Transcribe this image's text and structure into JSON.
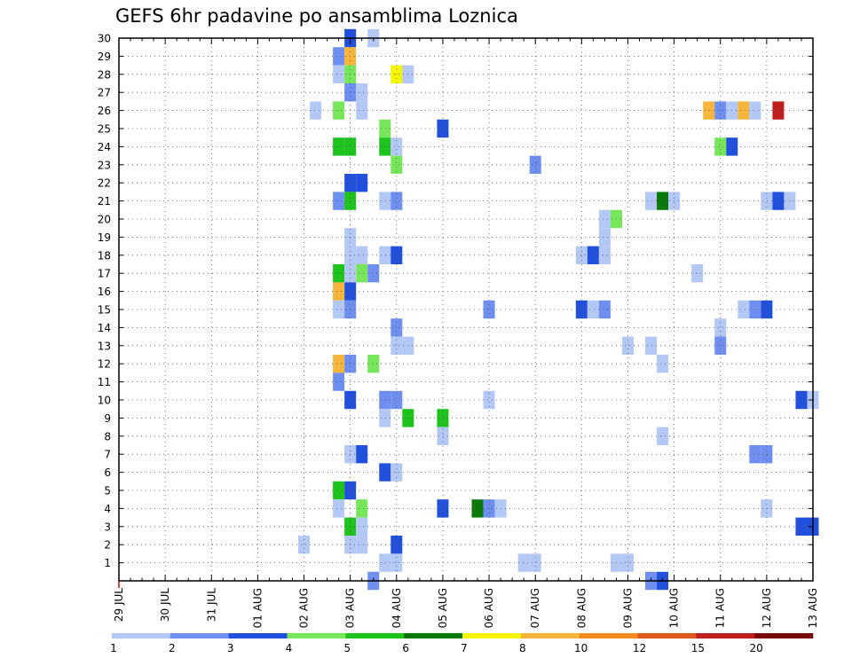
{
  "chart_data": {
    "type": "heatmap",
    "title": "GEFS 6hr padavine po ansamblima Loznica",
    "x_unit": "6-hour step",
    "x_tick_labels": [
      "29 JUL",
      "30 JUL",
      "31 JUL",
      "01 AUG",
      "02 AUG",
      "03 AUG",
      "04 AUG",
      "05 AUG",
      "06 AUG",
      "07 AUG",
      "08 AUG",
      "09 AUG",
      "10 AUG",
      "11 AUG",
      "12 AUG",
      "13 AUG"
    ],
    "xlim": [
      0,
      60
    ],
    "ylim": [
      0,
      30
    ],
    "y_tick_labels": [
      "1",
      "2",
      "3",
      "4",
      "5",
      "6",
      "7",
      "8",
      "9",
      "10",
      "11",
      "12",
      "13",
      "14",
      "15",
      "16",
      "17",
      "18",
      "19",
      "20",
      "21",
      "22",
      "23",
      "24",
      "25",
      "26",
      "27",
      "28",
      "29",
      "30"
    ],
    "grid": true,
    "colorbar": {
      "labels": [
        "1",
        "2",
        "3",
        "4",
        "5",
        "6",
        "7",
        "8",
        "10",
        "12",
        "15",
        "20"
      ],
      "colors": [
        "#b4c8f5",
        "#6e8ff0",
        "#2050dc",
        "#78e65a",
        "#1ec31e",
        "#0a780a",
        "#f5f500",
        "#f5b43c",
        "#f08c1e",
        "#dc5a1e",
        "#be1e1e",
        "#780a0a"
      ]
    },
    "cells": [
      [
        20,
        30,
        2
      ],
      [
        22,
        30,
        0
      ],
      [
        19,
        29,
        1
      ],
      [
        20,
        29,
        7
      ],
      [
        19,
        28,
        0
      ],
      [
        20,
        28,
        3
      ],
      [
        24,
        28,
        6
      ],
      [
        25,
        28,
        0
      ],
      [
        20,
        27,
        1
      ],
      [
        21,
        27,
        0
      ],
      [
        17,
        26,
        0
      ],
      [
        19,
        26,
        3
      ],
      [
        21,
        26,
        0
      ],
      [
        51,
        26,
        7
      ],
      [
        52,
        26,
        1
      ],
      [
        53,
        26,
        0
      ],
      [
        54,
        26,
        7
      ],
      [
        55,
        26,
        0
      ],
      [
        57,
        26,
        10
      ],
      [
        23,
        25,
        3
      ],
      [
        28,
        25,
        2
      ],
      [
        19,
        24,
        4
      ],
      [
        20,
        24,
        4
      ],
      [
        23,
        24,
        4
      ],
      [
        24,
        24,
        0
      ],
      [
        52,
        24,
        3
      ],
      [
        53,
        24,
        2
      ],
      [
        24,
        23,
        3
      ],
      [
        36,
        23,
        1
      ],
      [
        20,
        22,
        2
      ],
      [
        21,
        22,
        2
      ],
      [
        19,
        21,
        1
      ],
      [
        20,
        21,
        4
      ],
      [
        23,
        21,
        0
      ],
      [
        24,
        21,
        1
      ],
      [
        46,
        21,
        0
      ],
      [
        47,
        21,
        5
      ],
      [
        48,
        21,
        0
      ],
      [
        56,
        21,
        0
      ],
      [
        57,
        21,
        2
      ],
      [
        58,
        21,
        0
      ],
      [
        42,
        20,
        0
      ],
      [
        43,
        20,
        3
      ],
      [
        20,
        19,
        0
      ],
      [
        42,
        19,
        0
      ],
      [
        20,
        18,
        0
      ],
      [
        21,
        18,
        0
      ],
      [
        23,
        18,
        0
      ],
      [
        24,
        18,
        2
      ],
      [
        40,
        18,
        0
      ],
      [
        41,
        18,
        2
      ],
      [
        42,
        18,
        0
      ],
      [
        19,
        17,
        4
      ],
      [
        20,
        17,
        0
      ],
      [
        21,
        17,
        3
      ],
      [
        22,
        17,
        1
      ],
      [
        50,
        17,
        0
      ],
      [
        19,
        16,
        7
      ],
      [
        20,
        16,
        2
      ],
      [
        19,
        15,
        0
      ],
      [
        20,
        15,
        1
      ],
      [
        32,
        15,
        1
      ],
      [
        40,
        15,
        2
      ],
      [
        41,
        15,
        0
      ],
      [
        42,
        15,
        1
      ],
      [
        54,
        15,
        0
      ],
      [
        55,
        15,
        1
      ],
      [
        56,
        15,
        2
      ],
      [
        24,
        14,
        1
      ],
      [
        52,
        14,
        0
      ],
      [
        24,
        13,
        0
      ],
      [
        25,
        13,
        0
      ],
      [
        44,
        13,
        0
      ],
      [
        46,
        13,
        0
      ],
      [
        52,
        13,
        1
      ],
      [
        19,
        12,
        7
      ],
      [
        20,
        12,
        1
      ],
      [
        22,
        12,
        3
      ],
      [
        47,
        12,
        0
      ],
      [
        19,
        11,
        1
      ],
      [
        20,
        10,
        2
      ],
      [
        23,
        10,
        1
      ],
      [
        24,
        10,
        1
      ],
      [
        32,
        10,
        0
      ],
      [
        59,
        10,
        2
      ],
      [
        60,
        10,
        0
      ],
      [
        23,
        9,
        0
      ],
      [
        25,
        9,
        4
      ],
      [
        28,
        9,
        4
      ],
      [
        28,
        8,
        0
      ],
      [
        47,
        8,
        0
      ],
      [
        20,
        7,
        0
      ],
      [
        21,
        7,
        2
      ],
      [
        55,
        7,
        1
      ],
      [
        56,
        7,
        1
      ],
      [
        23,
        6,
        2
      ],
      [
        24,
        6,
        0
      ],
      [
        19,
        5,
        4
      ],
      [
        20,
        5,
        2
      ],
      [
        19,
        4,
        0
      ],
      [
        21,
        4,
        3
      ],
      [
        28,
        4,
        2
      ],
      [
        31,
        4,
        5
      ],
      [
        32,
        4,
        1
      ],
      [
        33,
        4,
        0
      ],
      [
        56,
        4,
        0
      ],
      [
        20,
        3,
        4
      ],
      [
        21,
        3,
        0
      ],
      [
        59,
        3,
        2
      ],
      [
        60,
        3,
        2
      ],
      [
        16,
        2,
        0
      ],
      [
        20,
        2,
        0
      ],
      [
        21,
        2,
        0
      ],
      [
        24,
        2,
        2
      ],
      [
        23,
        1,
        0
      ],
      [
        24,
        1,
        0
      ],
      [
        35,
        1,
        0
      ],
      [
        36,
        1,
        0
      ],
      [
        43,
        1,
        0
      ],
      [
        44,
        1,
        0
      ],
      [
        22,
        0,
        1
      ],
      [
        46,
        0,
        1
      ],
      [
        47,
        0,
        2
      ]
    ]
  }
}
